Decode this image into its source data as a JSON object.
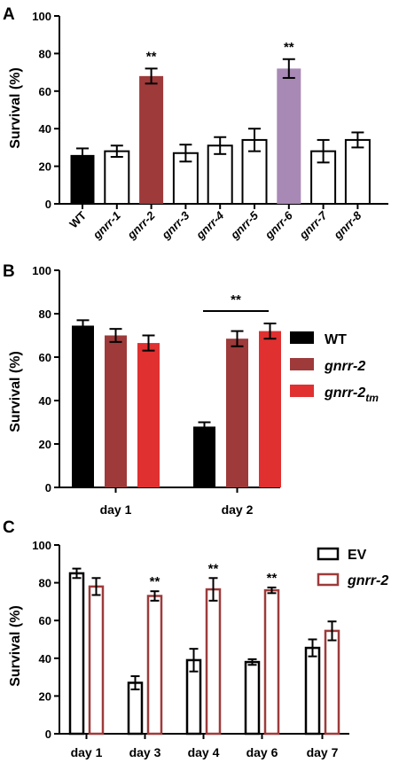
{
  "chart_data": [
    {
      "panel": "A",
      "type": "bar",
      "ylabel": "Survival (%)",
      "ylim": [
        0,
        100
      ],
      "yticks": [
        "0",
        "20",
        "40",
        "60",
        "80",
        "100"
      ],
      "categories": [
        "WT",
        "gnrr-1",
        "gnrr-2",
        "gnrr-3",
        "gnrr-4",
        "gnrr-5",
        "gnrr-6",
        "gnrr-7",
        "gnrr-8"
      ],
      "values": [
        26,
        28,
        68,
        27,
        31,
        34,
        72,
        28,
        34
      ],
      "errors": [
        3.5,
        3,
        4,
        4.5,
        4.5,
        6,
        5,
        6,
        4
      ],
      "colors": [
        "#000000",
        "#ffffff",
        "#9e3a3a",
        "#ffffff",
        "#ffffff",
        "#ffffff",
        "#a889b5",
        "#ffffff",
        "#ffffff"
      ],
      "annotations": [
        "",
        "",
        "**",
        "",
        "",
        "",
        "**",
        "",
        ""
      ]
    },
    {
      "panel": "B",
      "type": "bar",
      "ylabel": "Survival (%)",
      "ylim": [
        0,
        100
      ],
      "yticks": [
        "0",
        "20",
        "40",
        "60",
        "80",
        "100"
      ],
      "categories": [
        "day 1",
        "day 2"
      ],
      "series": [
        {
          "name": "WT",
          "values": [
            74.5,
            28
          ],
          "errors": [
            2.5,
            2
          ],
          "color": "#000000"
        },
        {
          "name": "gnrr-2",
          "values": [
            70,
            68.5
          ],
          "errors": [
            3,
            3.5
          ],
          "color": "#9e3a3a"
        },
        {
          "name": "gnrr-2",
          "subscript": "tm",
          "values": [
            66.5,
            72
          ],
          "errors": [
            3.5,
            3.5
          ],
          "color": "#e03030"
        }
      ],
      "annotation": "**",
      "legend": "right"
    },
    {
      "panel": "C",
      "type": "bar",
      "ylabel": "Survival (%)",
      "ylim": [
        0,
        100
      ],
      "yticks": [
        "0",
        "20",
        "40",
        "60",
        "80",
        "100"
      ],
      "categories": [
        "day 1",
        "day 3",
        "day 4",
        "day 6",
        "day 7"
      ],
      "series": [
        {
          "name": "EV",
          "values": [
            85,
            27,
            39,
            38,
            45.5
          ],
          "errors": [
            2.5,
            3.5,
            6,
            1.5,
            4.5
          ],
          "color": "#000000"
        },
        {
          "name": "gnrr-2",
          "values": [
            78,
            73,
            76.5,
            76,
            54.5
          ],
          "errors": [
            4.5,
            2.5,
            6,
            1.5,
            5
          ],
          "color": "#9e3a3a"
        }
      ],
      "annotations": [
        "",
        "**",
        "**",
        "**",
        ""
      ],
      "legend": "top-right"
    }
  ]
}
